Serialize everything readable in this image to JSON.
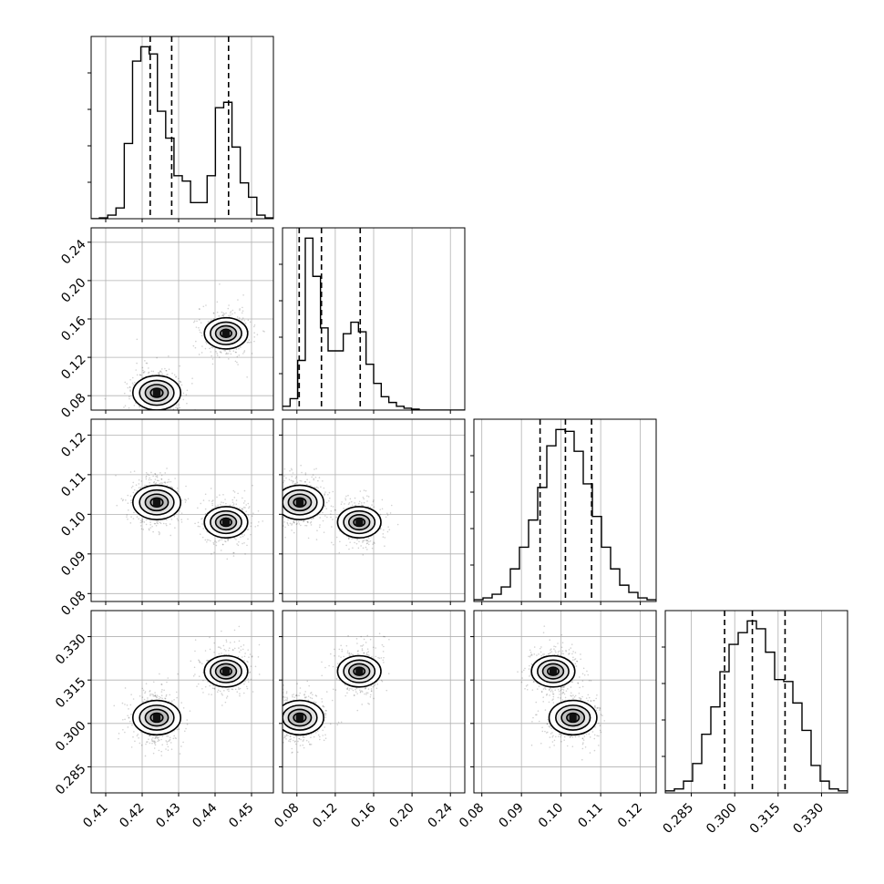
{
  "chart_data": {
    "type": "corner",
    "parameters": [
      {
        "id": "p0",
        "range": [
          0.406,
          0.456
        ],
        "ticks": [
          "0.41",
          "0.42",
          "0.43",
          "0.44",
          "0.45"
        ],
        "tick_values": [
          0.41,
          0.42,
          0.43,
          0.44,
          0.45
        ],
        "quantiles": [
          0.4222,
          0.4281,
          0.4437
        ],
        "hist": {
          "edges": [
            0.406,
            0.456
          ],
          "counts": [
            0.0,
            0.005,
            0.02,
            0.06,
            0.42,
            0.88,
            0.96,
            0.92,
            0.6,
            0.45,
            0.24,
            0.21,
            0.09,
            0.09,
            0.24,
            0.62,
            0.65,
            0.4,
            0.2,
            0.12,
            0.02,
            0.005
          ]
        }
      },
      {
        "id": "p1",
        "range": [
          0.065,
          0.255
        ],
        "ticks": [
          "0.08",
          "0.12",
          "0.16",
          "0.20",
          "0.24"
        ],
        "tick_values": [
          0.08,
          0.12,
          0.16,
          0.2,
          0.24
        ],
        "quantiles": [
          0.0824,
          0.1056,
          0.146
        ],
        "hist": {
          "edges": [
            0.065,
            0.255
          ],
          "counts": [
            0.02,
            0.06,
            0.26,
            0.9,
            0.7,
            0.43,
            0.31,
            0.31,
            0.4,
            0.46,
            0.41,
            0.24,
            0.14,
            0.07,
            0.04,
            0.02,
            0.01,
            0.005,
            0.0,
            0.0,
            0.0,
            0.0,
            0.0,
            0.0
          ]
        }
      },
      {
        "id": "p2",
        "range": [
          0.078,
          0.124
        ],
        "ticks": [
          "0.08",
          "0.09",
          "0.10",
          "0.11",
          "0.12"
        ],
        "tick_values": [
          0.08,
          0.09,
          0.1,
          0.11,
          0.12
        ],
        "quantiles": [
          0.0947,
          0.1011,
          0.1077
        ],
        "hist": {
          "edges": [
            0.078,
            0.124
          ],
          "counts": [
            0.01,
            0.02,
            0.04,
            0.08,
            0.18,
            0.3,
            0.45,
            0.63,
            0.86,
            0.95,
            0.94,
            0.83,
            0.65,
            0.47,
            0.3,
            0.18,
            0.09,
            0.05,
            0.02,
            0.01
          ]
        }
      },
      {
        "id": "p3",
        "range": [
          0.276,
          0.339
        ],
        "ticks": [
          "0.285",
          "0.300",
          "0.315",
          "0.330"
        ],
        "tick_values": [
          0.285,
          0.3,
          0.315,
          0.33
        ],
        "quantiles": [
          0.2965,
          0.3061,
          0.3174
        ],
        "hist": {
          "edges": [
            0.276,
            0.339
          ],
          "counts": [
            0.01,
            0.02,
            0.06,
            0.15,
            0.3,
            0.44,
            0.62,
            0.76,
            0.82,
            0.88,
            0.84,
            0.72,
            0.58,
            0.57,
            0.46,
            0.32,
            0.14,
            0.06,
            0.02,
            0.01
          ]
        }
      }
    ],
    "modes": [
      {
        "weight": 0.62,
        "p0": 0.424,
        "p1": 0.083,
        "p2": 0.103,
        "p3": 0.302
      },
      {
        "weight": 0.38,
        "p0": 0.443,
        "p1": 0.145,
        "p2": 0.098,
        "p3": 0.318
      }
    ],
    "grid": true,
    "title": "",
    "xlabel": "",
    "ylabel": ""
  }
}
